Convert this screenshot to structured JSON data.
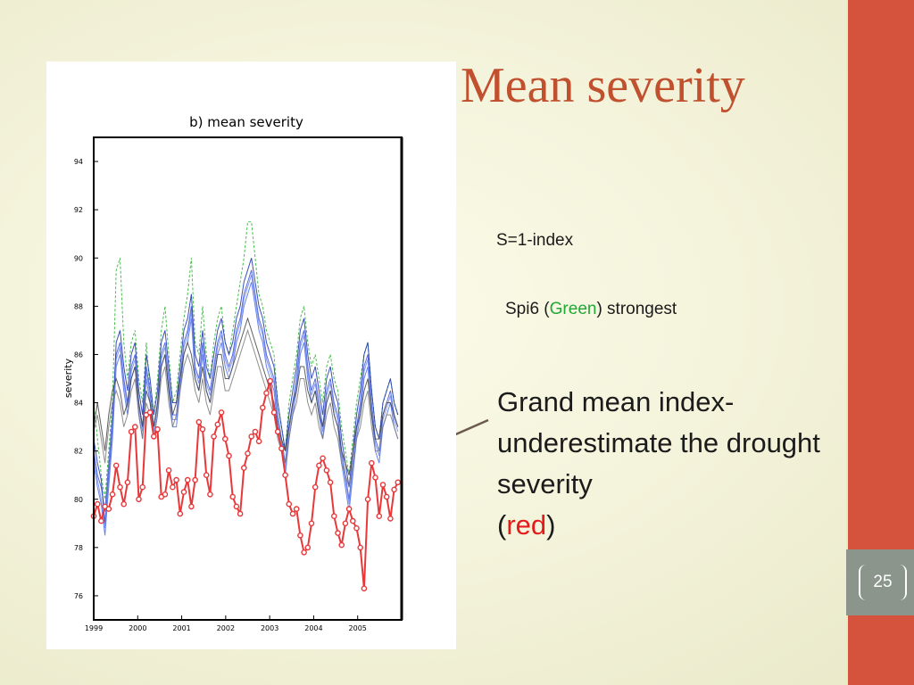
{
  "slide": {
    "title": "Mean severity",
    "page_number": "25",
    "note1": "S=1-index",
    "note2_prefix": "Spi6 (",
    "note2_highlight": "Green",
    "note2_suffix": ") strongest",
    "note3_main": "Grand mean index- underestimate the drought severity",
    "note3_open": "(",
    "note3_highlight": "red",
    "note3_close": ")",
    "colors": {
      "accent_bar": "#d5533d",
      "title": "#c0502e",
      "green": "#22a838",
      "red": "#e31b1b",
      "page_box": "#8b958b"
    }
  },
  "chart_data": {
    "type": "line",
    "title": "b)  mean  severity",
    "xlabel": "",
    "ylabel": "severity",
    "x_ticks": [
      "1999",
      "2000",
      "2001",
      "2002",
      "2003",
      "2004",
      "2005"
    ],
    "y_ticks": [
      76,
      78,
      80,
      82,
      84,
      86,
      88,
      90,
      92,
      94
    ],
    "xlim": [
      1999,
      2006
    ],
    "ylim": [
      75,
      95
    ],
    "grid": false,
    "series": [
      {
        "color": "#e8383a",
        "markers": true,
        "values": [
          79.3,
          79.8,
          79.1,
          79.7,
          79.6,
          80.2,
          81.4,
          80.5,
          79.8,
          80.7,
          82.8,
          83.0,
          80.0,
          80.5,
          83.5,
          83.6,
          82.6,
          82.9,
          80.1,
          80.2,
          81.2,
          80.5,
          80.8,
          79.4,
          80.3,
          80.8,
          79.7,
          80.8,
          83.2,
          82.9,
          81.0,
          80.2,
          82.6,
          83.1,
          83.6,
          82.5,
          81.8,
          80.1,
          79.7,
          79.4,
          81.3,
          81.9,
          82.6,
          82.8,
          82.4,
          83.8,
          84.4,
          84.9,
          83.6,
          82.8,
          82.1,
          81.0,
          79.8,
          79.4,
          79.6,
          78.5,
          77.8,
          78.0,
          79.0,
          80.5,
          81.4,
          81.7,
          81.2,
          80.7,
          79.3,
          78.6,
          78.1,
          79.0,
          79.6,
          79.1,
          78.8,
          78.0,
          76.3,
          80.0,
          81.5,
          80.9,
          79.3,
          80.6,
          80.1,
          79.2,
          80.4,
          80.7
        ]
      },
      {
        "color": "#2ab32f",
        "dashed": true,
        "values": [
          84.0,
          82.5,
          81.0,
          80.0,
          82.0,
          84.0,
          89.5,
          90.0,
          86.5,
          85.0,
          86.5,
          87.0,
          85.0,
          84.0,
          86.5,
          84.5,
          83.5,
          85.0,
          87.0,
          88.0,
          86.0,
          84.0,
          84.5,
          86.0,
          87.5,
          88.5,
          90.0,
          86.5,
          86.0,
          88.0,
          86.0,
          85.0,
          86.5,
          87.5,
          88.0,
          86.5,
          86.0,
          87.0,
          88.0,
          89.0,
          90.0,
          91.5,
          91.5,
          90.0,
          88.5,
          88.0,
          87.0,
          86.5,
          86.0,
          84.0,
          83.0,
          82.0,
          84.0,
          85.0,
          86.0,
          87.5,
          88.0,
          86.5,
          85.5,
          86.0,
          85.0,
          84.0,
          85.5,
          86.0,
          85.0,
          84.5,
          83.0,
          82.0,
          81.0,
          82.5,
          84.0,
          85.0,
          86.0,
          86.5,
          84.5,
          83.0,
          82.5,
          84.0,
          84.5,
          85.0,
          84.0,
          83.5
        ]
      },
      {
        "color": "#3b55d6",
        "values": [
          82.0,
          81.0,
          80.5,
          79.5,
          81.5,
          83.5,
          86.0,
          86.5,
          85.0,
          84.0,
          85.5,
          86.0,
          84.0,
          83.0,
          85.5,
          84.5,
          83.0,
          84.0,
          86.0,
          86.5,
          85.0,
          83.5,
          83.5,
          85.0,
          86.5,
          87.0,
          88.0,
          85.5,
          85.0,
          86.5,
          85.0,
          84.5,
          85.5,
          86.5,
          87.0,
          86.0,
          85.5,
          86.0,
          87.0,
          87.5,
          88.5,
          89.0,
          89.5,
          88.5,
          87.5,
          87.0,
          86.0,
          85.5,
          85.0,
          83.5,
          82.5,
          81.5,
          83.0,
          84.0,
          85.0,
          86.5,
          87.0,
          85.5,
          84.5,
          85.0,
          84.0,
          83.0,
          84.5,
          85.0,
          84.0,
          83.5,
          82.0,
          81.0,
          80.0,
          81.5,
          83.0,
          84.0,
          85.5,
          86.0,
          84.0,
          82.5,
          82.0,
          83.5,
          84.0,
          84.5,
          83.5,
          83.0
        ]
      },
      {
        "color": "#4e6ee8",
        "values": [
          81.5,
          80.5,
          79.8,
          78.5,
          80.5,
          82.5,
          85.5,
          86.0,
          84.5,
          83.5,
          85.0,
          85.5,
          83.5,
          82.5,
          85.0,
          84.0,
          82.5,
          83.5,
          85.5,
          86.0,
          84.5,
          83.0,
          83.0,
          84.5,
          86.0,
          86.5,
          87.5,
          85.0,
          84.5,
          86.0,
          84.5,
          84.0,
          85.0,
          86.0,
          86.5,
          85.5,
          85.0,
          85.5,
          86.5,
          87.0,
          88.0,
          88.5,
          89.0,
          88.0,
          87.0,
          86.5,
          85.5,
          85.0,
          84.5,
          83.0,
          82.0,
          81.0,
          82.5,
          83.5,
          84.5,
          86.0,
          86.5,
          85.0,
          84.0,
          84.5,
          83.5,
          82.5,
          84.0,
          84.5,
          83.5,
          83.0,
          81.5,
          80.5,
          79.5,
          81.0,
          82.5,
          83.5,
          85.0,
          85.5,
          83.5,
          82.0,
          81.5,
          83.0,
          83.5,
          84.0,
          83.0,
          82.5
        ]
      },
      {
        "color": "#1a2fb0",
        "values": [
          82.5,
          81.5,
          80.8,
          79.0,
          81.0,
          83.0,
          86.5,
          87.0,
          85.5,
          84.5,
          86.0,
          86.5,
          84.5,
          83.5,
          86.0,
          85.0,
          83.5,
          84.5,
          86.5,
          87.0,
          85.5,
          84.0,
          84.0,
          85.5,
          87.0,
          87.5,
          88.5,
          86.0,
          85.5,
          87.0,
          85.5,
          85.0,
          86.0,
          87.0,
          87.5,
          86.5,
          86.0,
          86.5,
          87.5,
          88.0,
          89.0,
          89.5,
          90.0,
          89.0,
          88.0,
          87.5,
          86.5,
          86.0,
          85.5,
          84.0,
          83.0,
          82.0,
          83.5,
          84.5,
          85.5,
          87.0,
          87.5,
          86.0,
          85.0,
          85.5,
          84.5,
          83.5,
          85.0,
          85.5,
          84.5,
          84.0,
          82.5,
          81.5,
          80.5,
          82.0,
          83.5,
          84.5,
          86.0,
          86.5,
          84.5,
          83.0,
          82.5,
          84.0,
          84.5,
          85.0,
          84.0,
          83.5
        ]
      },
      {
        "color": "#6d86f0",
        "values": [
          81.8,
          80.8,
          80.0,
          78.8,
          80.8,
          82.8,
          85.8,
          86.3,
          84.8,
          83.8,
          85.3,
          85.8,
          83.8,
          82.8,
          85.3,
          84.3,
          82.8,
          83.8,
          85.8,
          86.3,
          84.8,
          83.3,
          83.3,
          84.8,
          86.3,
          86.8,
          87.8,
          85.3,
          84.8,
          86.3,
          84.8,
          84.3,
          85.3,
          86.3,
          86.8,
          85.8,
          85.3,
          85.8,
          86.8,
          87.3,
          88.3,
          88.8,
          89.3,
          88.3,
          87.3,
          86.8,
          85.8,
          85.3,
          84.8,
          83.3,
          82.3,
          81.3,
          82.8,
          83.8,
          84.8,
          86.3,
          86.8,
          85.3,
          84.3,
          84.8,
          83.8,
          82.8,
          84.3,
          84.8,
          83.8,
          83.3,
          81.8,
          80.8,
          79.8,
          81.3,
          82.8,
          83.8,
          85.3,
          85.8,
          83.8,
          82.3,
          81.8,
          83.3,
          83.8,
          84.3,
          83.3,
          82.8
        ]
      },
      {
        "color": "#444444",
        "values": [
          83.0,
          84.0,
          83.0,
          82.0,
          83.5,
          84.5,
          85.0,
          84.5,
          83.5,
          84.0,
          85.0,
          85.5,
          84.0,
          83.0,
          84.5,
          84.0,
          83.0,
          84.0,
          85.5,
          86.0,
          84.5,
          83.5,
          84.0,
          85.0,
          86.0,
          86.5,
          86.0,
          85.0,
          84.5,
          85.5,
          84.5,
          84.0,
          85.0,
          86.0,
          86.0,
          85.0,
          85.0,
          85.5,
          86.0,
          86.5,
          87.0,
          87.5,
          87.0,
          86.5,
          86.0,
          85.5,
          85.0,
          84.5,
          84.0,
          83.0,
          82.5,
          82.0,
          83.0,
          84.0,
          84.5,
          85.5,
          85.5,
          84.5,
          84.0,
          84.5,
          83.5,
          83.0,
          84.0,
          84.5,
          83.5,
          83.0,
          82.0,
          81.5,
          81.0,
          82.0,
          83.0,
          83.5,
          84.5,
          85.0,
          83.5,
          82.5,
          82.5,
          83.5,
          84.0,
          84.0,
          83.5,
          83.0
        ]
      },
      {
        "color": "#7a7a7a",
        "values": [
          82.8,
          83.5,
          82.5,
          81.5,
          83.0,
          84.0,
          84.5,
          84.0,
          83.0,
          83.5,
          84.5,
          85.0,
          83.5,
          82.5,
          84.0,
          83.5,
          82.5,
          83.5,
          85.0,
          85.5,
          84.0,
          83.0,
          83.5,
          84.5,
          85.5,
          86.0,
          85.5,
          84.5,
          84.0,
          85.0,
          84.0,
          83.5,
          84.5,
          85.5,
          85.5,
          84.5,
          84.5,
          85.0,
          85.5,
          86.0,
          86.5,
          87.0,
          86.5,
          86.0,
          85.5,
          85.0,
          84.5,
          84.0,
          83.5,
          82.5,
          82.0,
          81.5,
          82.5,
          83.5,
          84.0,
          85.0,
          85.0,
          84.0,
          83.5,
          84.0,
          83.0,
          82.5,
          83.5,
          84.0,
          83.0,
          82.5,
          81.5,
          81.0,
          80.5,
          81.5,
          82.5,
          83.0,
          84.0,
          84.5,
          83.0,
          82.0,
          82.0,
          83.0,
          83.5,
          83.5,
          83.0,
          82.5
        ]
      }
    ]
  }
}
